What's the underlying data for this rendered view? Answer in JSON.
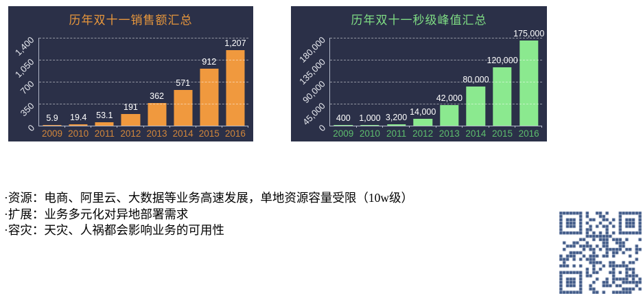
{
  "theme": {
    "page_bg": "#FFFFFF",
    "panel_bg": "#2B3048",
    "grid_color": "rgba(255,255,255,0.5)",
    "axis_line_color": "rgba(202,208,224,0.85)",
    "value_label_color": "#FFFFFF",
    "ytick_color": "#E8EAF0"
  },
  "chart_data": [
    {
      "type": "bar",
      "title": "历年双十一销售额汇总",
      "categories": [
        "2009",
        "2010",
        "2011",
        "2012",
        "2013",
        "2014",
        "2015",
        "2016"
      ],
      "values": [
        5.9,
        19.4,
        53.1,
        191,
        362,
        571,
        912,
        1207
      ],
      "value_labels": [
        "5.9",
        "19.4",
        "53.1",
        "191",
        "362",
        "571",
        "912",
        "1,207"
      ],
      "ytick_labels": [
        "0",
        "350",
        "700",
        "1,050",
        "1,400"
      ],
      "ylim": [
        0,
        1400
      ],
      "xlabel": "",
      "ylabel": "",
      "grid": true,
      "legend": false,
      "bar_color": "#F0993E",
      "title_color": "#E8973C",
      "axis_label_color": "#D3873B"
    },
    {
      "type": "bar",
      "title": "历年双十一秒级峰值汇总",
      "categories": [
        "2009",
        "2010",
        "2011",
        "2012",
        "2013",
        "2014",
        "2015",
        "2016"
      ],
      "values": [
        400,
        1000,
        3200,
        14000,
        42000,
        80000,
        120000,
        175000
      ],
      "value_labels": [
        "400",
        "1,000",
        "3,200",
        "14,000",
        "42,000",
        "80,000",
        "120,000",
        "175,000"
      ],
      "ytick_labels": [
        "0",
        "45,000",
        "90,000",
        "135,000",
        "180,000"
      ],
      "ylim": [
        0,
        180000
      ],
      "xlabel": "",
      "ylabel": "",
      "grid": true,
      "legend": false,
      "bar_color": "#8BE98F",
      "title_color": "#7FDD84",
      "axis_label_color": "#5EBE6E"
    }
  ],
  "notes": {
    "lines": [
      "·资源：电商、阿里云、大数据等业务高速发展，单地资源容量受限（10w级）",
      "·扩展：业务多元化对异地部署需求",
      "·容灾：天灾、人祸都会影响业务的可用性"
    ]
  },
  "qr": {
    "color": "#3D5786",
    "background": "#FFFFFF"
  }
}
